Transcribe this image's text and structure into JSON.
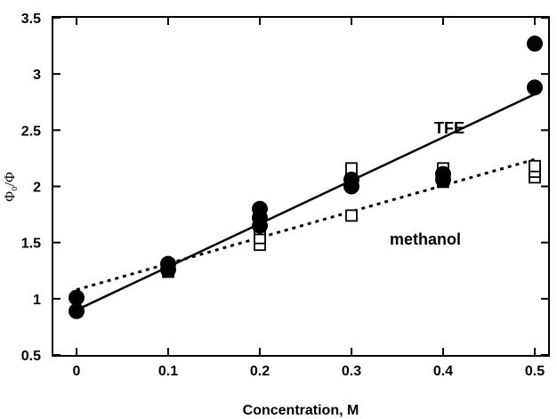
{
  "chart_data": {
    "type": "scatter",
    "xlabel": "Concentration, M",
    "ylabel": "Φ₀/Φ",
    "xlim": [
      0,
      0.5
    ],
    "ylim": [
      0.5,
      3.5
    ],
    "xticks": [
      "0",
      "0.1",
      "0.2",
      "0.3",
      "0.4",
      "0.5"
    ],
    "yticks": [
      "0.5",
      "1",
      "1.5",
      "2",
      "2.5",
      "3",
      "3.5"
    ],
    "grid": false,
    "annotations": [
      "TFE",
      "methanol"
    ],
    "series": [
      {
        "name": "TFE",
        "marker": "filled-circle",
        "points": [
          [
            0,
            0.89
          ],
          [
            0,
            1.01
          ],
          [
            0.1,
            1.26
          ],
          [
            0.1,
            1.31
          ],
          [
            0.2,
            1.65
          ],
          [
            0.2,
            1.72
          ],
          [
            0.2,
            1.8
          ],
          [
            0.3,
            2.0
          ],
          [
            0.3,
            2.06
          ],
          [
            0.4,
            2.06
          ],
          [
            0.4,
            2.11
          ],
          [
            0.5,
            2.88
          ],
          [
            0.5,
            3.27
          ]
        ],
        "fit": {
          "style": "solid",
          "x": [
            0,
            0.5
          ],
          "y": [
            0.9,
            2.82
          ]
        }
      },
      {
        "name": "methanol",
        "marker": "open-square",
        "points": [
          [
            0.1,
            1.24
          ],
          [
            0.1,
            1.3
          ],
          [
            0.2,
            1.48
          ],
          [
            0.2,
            1.54
          ],
          [
            0.2,
            1.62
          ],
          [
            0.3,
            1.74
          ],
          [
            0.3,
            2.06
          ],
          [
            0.3,
            2.16
          ],
          [
            0.4,
            2.04
          ],
          [
            0.4,
            2.1
          ],
          [
            0.4,
            2.16
          ],
          [
            0.5,
            2.08
          ],
          [
            0.5,
            2.13
          ],
          [
            0.5,
            2.18
          ]
        ],
        "fit": {
          "style": "dotted",
          "x": [
            0,
            0.5
          ],
          "y": [
            1.08,
            2.24
          ]
        }
      }
    ]
  }
}
